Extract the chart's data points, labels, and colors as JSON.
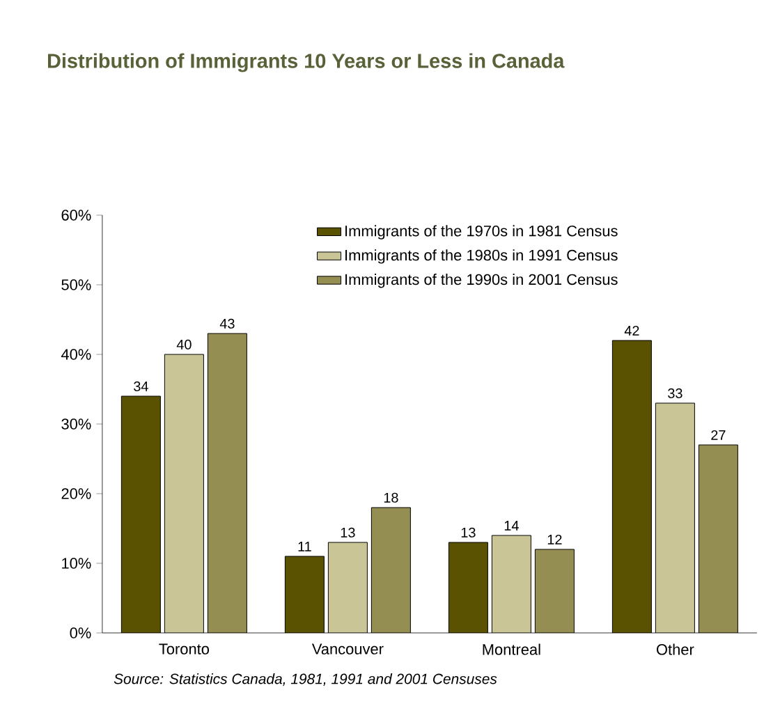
{
  "chart_data": {
    "type": "bar",
    "title": "Distribution of Immigrants 10 Years or Less in Canada",
    "categories": [
      "Toronto",
      "Vancouver",
      "Montreal",
      "Other"
    ],
    "series": [
      {
        "name": "Immigrants of the 1970s in 1981 Census",
        "color": "#5a5200",
        "values": [
          34,
          11,
          13,
          42
        ]
      },
      {
        "name": "Immigrants of the 1980s in 1991 Census",
        "color": "#c9c597",
        "values": [
          40,
          13,
          14,
          33
        ]
      },
      {
        "name": "Immigrants of the 1990s in 2001 Census",
        "color": "#958e52",
        "values": [
          43,
          18,
          12,
          27
        ]
      }
    ],
    "ylim": [
      0,
      60
    ],
    "yticks": [
      {
        "value": 0,
        "label": "0%"
      },
      {
        "value": 10,
        "label": "10%"
      },
      {
        "value": 20,
        "label": "20%"
      },
      {
        "value": 30,
        "label": "30%"
      },
      {
        "value": 40,
        "label": "40%"
      },
      {
        "value": 50,
        "label": "50%"
      },
      {
        "value": 60,
        "label": "60%"
      }
    ],
    "data_labels": true,
    "legend": "top",
    "annotations": [
      "Source: Statistics Canada, 1981, 1991 and 2001 Censuses"
    ]
  }
}
